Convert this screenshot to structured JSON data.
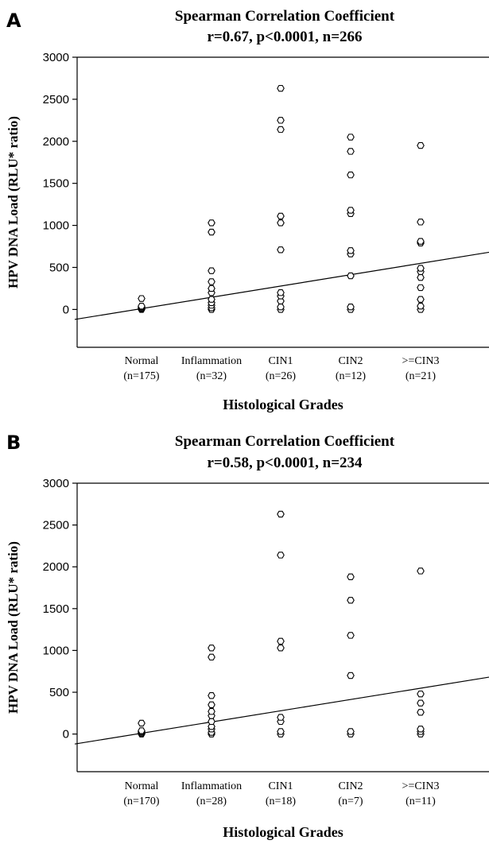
{
  "chart_data": [
    {
      "type": "scatter",
      "panel": "A",
      "title": "Spearman Correlation Coefficient",
      "subtitle": "r=0.67, p<0.0001, n=266",
      "xlabel": "Histological Grades",
      "ylabel": "HPV DNA Load (RLU* ratio)",
      "ylim": [
        -450,
        3000
      ],
      "yticks": [
        0,
        500,
        1000,
        1500,
        2000,
        2500,
        3000
      ],
      "categories": [
        "Normal",
        "Inflammation",
        "CIN1",
        "CIN2",
        ">=CIN3"
      ],
      "category_counts": [
        "(n=175)",
        "(n=32)",
        "(n=26)",
        "(n=12)",
        "(n=21)"
      ],
      "points": [
        [
          0,
          0
        ],
        [
          0,
          10
        ],
        [
          0,
          20
        ],
        [
          0,
          30
        ],
        [
          0,
          40
        ],
        [
          0,
          130
        ],
        [
          1,
          0
        ],
        [
          1,
          20
        ],
        [
          1,
          50
        ],
        [
          1,
          80
        ],
        [
          1,
          120
        ],
        [
          1,
          200
        ],
        [
          1,
          250
        ],
        [
          1,
          330
        ],
        [
          1,
          460
        ],
        [
          1,
          920
        ],
        [
          1,
          1030
        ],
        [
          2,
          0
        ],
        [
          2,
          30
        ],
        [
          2,
          100
        ],
        [
          2,
          160
        ],
        [
          2,
          200
        ],
        [
          2,
          710
        ],
        [
          2,
          1030
        ],
        [
          2,
          1110
        ],
        [
          2,
          2140
        ],
        [
          2,
          2250
        ],
        [
          2,
          2630
        ],
        [
          3,
          0
        ],
        [
          3,
          30
        ],
        [
          3,
          400
        ],
        [
          3,
          660
        ],
        [
          3,
          700
        ],
        [
          3,
          1140
        ],
        [
          3,
          1180
        ],
        [
          3,
          1600
        ],
        [
          3,
          1880
        ],
        [
          3,
          2050
        ],
        [
          4,
          0
        ],
        [
          4,
          40
        ],
        [
          4,
          120
        ],
        [
          4,
          260
        ],
        [
          4,
          380
        ],
        [
          4,
          450
        ],
        [
          4,
          490
        ],
        [
          4,
          790
        ],
        [
          4,
          810
        ],
        [
          4,
          1040
        ],
        [
          4,
          1950
        ]
      ],
      "regression": {
        "y_at_normal": 10,
        "slope_per_category": 135
      }
    },
    {
      "type": "scatter",
      "panel": "B",
      "title": "Spearman Correlation Coefficient",
      "subtitle": "r=0.58, p<0.0001, n=234",
      "xlabel": "Histological Grades",
      "ylabel": "HPV DNA Load (RLU* ratio)",
      "ylim": [
        -450,
        3000
      ],
      "yticks": [
        0,
        500,
        1000,
        1500,
        2000,
        2500,
        3000
      ],
      "categories": [
        "Normal",
        "Inflammation",
        "CIN1",
        "CIN2",
        ">=CIN3"
      ],
      "category_counts": [
        "(n=170)",
        "(n=28)",
        "(n=18)",
        "(n=7)",
        "(n=11)"
      ],
      "points": [
        [
          0,
          0
        ],
        [
          0,
          10
        ],
        [
          0,
          20
        ],
        [
          0,
          30
        ],
        [
          0,
          40
        ],
        [
          0,
          130
        ],
        [
          1,
          0
        ],
        [
          1,
          20
        ],
        [
          1,
          60
        ],
        [
          1,
          90
        ],
        [
          1,
          150
        ],
        [
          1,
          220
        ],
        [
          1,
          270
        ],
        [
          1,
          350
        ],
        [
          1,
          460
        ],
        [
          1,
          920
        ],
        [
          1,
          1030
        ],
        [
          2,
          0
        ],
        [
          2,
          30
        ],
        [
          2,
          150
        ],
        [
          2,
          200
        ],
        [
          2,
          1030
        ],
        [
          2,
          1110
        ],
        [
          2,
          2140
        ],
        [
          2,
          2630
        ],
        [
          3,
          0
        ],
        [
          3,
          30
        ],
        [
          3,
          700
        ],
        [
          3,
          1180
        ],
        [
          3,
          1600
        ],
        [
          3,
          1880
        ],
        [
          4,
          0
        ],
        [
          4,
          30
        ],
        [
          4,
          60
        ],
        [
          4,
          260
        ],
        [
          4,
          370
        ],
        [
          4,
          480
        ],
        [
          4,
          1950
        ]
      ],
      "regression": {
        "y_at_normal": 10,
        "slope_per_category": 135
      }
    }
  ]
}
